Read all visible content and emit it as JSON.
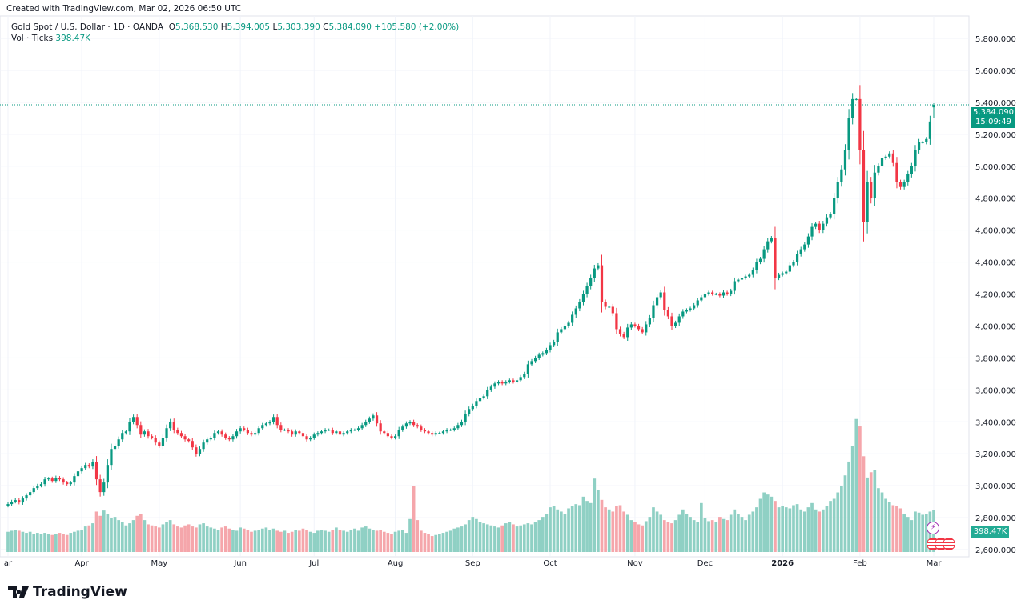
{
  "header": {
    "created": "Created with TradingView.com, Mar 02, 2026 06:50 UTC"
  },
  "legend": {
    "symbol": "Gold Spot / U.S. Dollar · 1D · OANDA",
    "o_label": "O",
    "o": "5,368.530",
    "h_label": "H",
    "h": "5,394.005",
    "l_label": "L",
    "l": "5,303.390",
    "c_label": "C",
    "c": "5,384.090",
    "change": "+105.580 (+2.00%)",
    "vol_label": "Vol · Ticks",
    "vol": "398.47K"
  },
  "price_tag": {
    "price": "5,384.090",
    "countdown": "15:09:49"
  },
  "vol_tag": "398.47K",
  "logo": "TradingView",
  "colors": {
    "up": "#089981",
    "down": "#f23645",
    "vol_up": "#8fd0c4",
    "vol_down": "#f5a6ab",
    "grid": "#f0f3fa"
  },
  "icons": [
    "lightning-event-icon",
    "us-flag-event-icon",
    "us-flag-event-icon",
    "us-flag-event-icon"
  ],
  "chart_data": {
    "type": "candlestick",
    "symbol": "XAUUSD",
    "interval": "1D",
    "start": "2025-03-03",
    "end": "2026-03-02",
    "y_ticks": [
      "2,600.000",
      "2,800.000",
      "3,000.000",
      "3,200.000",
      "3,400.000",
      "3,600.000",
      "3,800.000",
      "4,000.000",
      "4,200.000",
      "4,400.000",
      "4,600.000",
      "4,800.000",
      "5,000.000",
      "5,200.000",
      "5,400.000",
      "5,600.000",
      "5,800.000"
    ],
    "ylim": [
      2600,
      5800
    ],
    "x_ticks": [
      {
        "label": "ar",
        "bar": 0
      },
      {
        "label": "Apr",
        "bar": 20
      },
      {
        "label": "May",
        "bar": 41
      },
      {
        "label": "Jun",
        "bar": 63
      },
      {
        "label": "Jul",
        "bar": 83
      },
      {
        "label": "Aug",
        "bar": 105
      },
      {
        "label": "Sep",
        "bar": 126
      },
      {
        "label": "Oct",
        "bar": 147
      },
      {
        "label": "Nov",
        "bar": 170
      },
      {
        "label": "Dec",
        "bar": 189
      },
      {
        "label": "2026",
        "bar": 210
      },
      {
        "label": "Feb",
        "bar": 231
      },
      {
        "label": "Mar",
        "bar": 251
      }
    ],
    "grid": true,
    "close": [
      2885,
      2900,
      2910,
      2895,
      2920,
      2940,
      2960,
      2985,
      3000,
      3010,
      3040,
      3045,
      3030,
      3050,
      3040,
      3020,
      3010,
      3020,
      3060,
      3090,
      3110,
      3130,
      3120,
      3150,
      3040,
      2960,
      3020,
      3130,
      3230,
      3250,
      3290,
      3330,
      3340,
      3400,
      3430,
      3380,
      3320,
      3340,
      3310,
      3300,
      3270,
      3250,
      3300,
      3360,
      3400,
      3350,
      3330,
      3310,
      3290,
      3280,
      3240,
      3200,
      3230,
      3270,
      3290,
      3300,
      3330,
      3340,
      3320,
      3300,
      3290,
      3310,
      3340,
      3360,
      3350,
      3330,
      3320,
      3330,
      3360,
      3380,
      3390,
      3400,
      3430,
      3380,
      3350,
      3350,
      3340,
      3320,
      3340,
      3330,
      3310,
      3290,
      3300,
      3320,
      3330,
      3340,
      3350,
      3350,
      3330,
      3340,
      3320,
      3330,
      3340,
      3350,
      3350,
      3360,
      3380,
      3400,
      3420,
      3440,
      3390,
      3340,
      3330,
      3310,
      3300,
      3310,
      3350,
      3370,
      3390,
      3400,
      3380,
      3370,
      3350,
      3340,
      3330,
      3320,
      3330,
      3330,
      3340,
      3350,
      3350,
      3360,
      3380,
      3400,
      3450,
      3480,
      3500,
      3530,
      3550,
      3560,
      3600,
      3620,
      3640,
      3650,
      3640,
      3650,
      3660,
      3650,
      3660,
      3680,
      3700,
      3760,
      3780,
      3800,
      3820,
      3830,
      3850,
      3880,
      3900,
      3960,
      3980,
      4000,
      4020,
      4070,
      4110,
      4150,
      4200,
      4250,
      4300,
      4360,
      4380,
      4150,
      4120,
      4120,
      4080,
      3980,
      3950,
      3930,
      3990,
      4010,
      4000,
      3980,
      3960,
      4010,
      4050,
      4130,
      4180,
      4210,
      4100,
      4060,
      4000,
      4020,
      4060,
      4090,
      4100,
      4110,
      4130,
      4160,
      4180,
      4200,
      4210,
      4200,
      4200,
      4190,
      4210,
      4200,
      4220,
      4280,
      4290,
      4300,
      4310,
      4320,
      4350,
      4400,
      4420,
      4480,
      4530,
      4550,
      4300,
      4320,
      4330,
      4340,
      4380,
      4400,
      4450,
      4480,
      4510,
      4560,
      4620,
      4640,
      4600,
      4640,
      4680,
      4700,
      4800,
      4900,
      4980,
      5100,
      5300,
      5420,
      5420,
      5100,
      4650,
      4900,
      4800,
      4960,
      5000,
      5050,
      5060,
      5080,
      5020,
      4900,
      4870,
      4900,
      4950,
      5000,
      5100,
      5150,
      5150,
      5170,
      5280,
      5384.09
    ],
    "volume_k": [
      190,
      200,
      210,
      200,
      190,
      180,
      190,
      170,
      180,
      170,
      180,
      170,
      160,
      170,
      180,
      170,
      160,
      180,
      190,
      200,
      210,
      240,
      250,
      270,
      380,
      340,
      390,
      360,
      320,
      330,
      300,
      280,
      250,
      270,
      300,
      340,
      360,
      300,
      260,
      250,
      240,
      230,
      260,
      280,
      300,
      260,
      240,
      230,
      250,
      260,
      240,
      230,
      260,
      270,
      240,
      230,
      220,
      210,
      230,
      240,
      220,
      210,
      200,
      230,
      220,
      210,
      190,
      200,
      210,
      220,
      230,
      210,
      220,
      200,
      190,
      200,
      180,
      190,
      210,
      200,
      220,
      210,
      190,
      180,
      200,
      210,
      200,
      190,
      210,
      230,
      210,
      200,
      190,
      210,
      220,
      200,
      230,
      240,
      220,
      210,
      200,
      210,
      190,
      180,
      170,
      190,
      200,
      210,
      180,
      310,
      620,
      300,
      200,
      180,
      170,
      150,
      160,
      170,
      180,
      190,
      200,
      220,
      230,
      240,
      260,
      300,
      330,
      310,
      280,
      270,
      260,
      250,
      240,
      230,
      250,
      270,
      280,
      260,
      240,
      250,
      260,
      270,
      260,
      280,
      300,
      330,
      360,
      420,
      430,
      400,
      380,
      360,
      410,
      430,
      450,
      440,
      520,
      480,
      460,
      690,
      580,
      490,
      420,
      400,
      380,
      430,
      440,
      380,
      350,
      300,
      280,
      260,
      250,
      290,
      330,
      420,
      380,
      350,
      300,
      280,
      270,
      300,
      350,
      400,
      360,
      330,
      300,
      280,
      460,
      320,
      290,
      300,
      280,
      330,
      310,
      300,
      350,
      400,
      360,
      330,
      300,
      350,
      380,
      420,
      500,
      560,
      540,
      520,
      480,
      420,
      430,
      420,
      410,
      440,
      450,
      400,
      380,
      420,
      460,
      400,
      380,
      400,
      430,
      480,
      500,
      560,
      620,
      720,
      850,
      1000,
      1250,
      1180,
      900,
      700,
      750,
      770,
      600,
      560,
      500,
      470,
      440,
      430,
      410,
      360,
      330,
      300,
      380,
      370,
      350,
      360,
      380,
      398.47
    ],
    "last": {
      "open": 5368.53,
      "high": 5394.005,
      "low": 5303.39,
      "close": 5384.09,
      "change": 105.58,
      "change_pct": 2.0
    }
  }
}
